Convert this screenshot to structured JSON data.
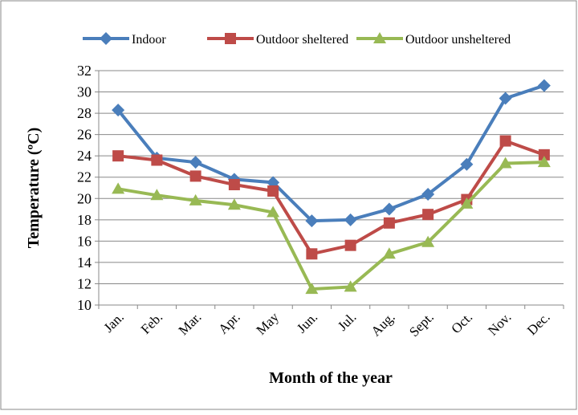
{
  "chart_data": {
    "type": "line",
    "x_label": "Month of the year",
    "y_label": "Temperature (ºC)",
    "categories": [
      "Jan.",
      "Feb.",
      "Mar.",
      "Apr.",
      "May",
      "Jun.",
      "Jul.",
      "Aug.",
      "Sept.",
      "Oct.",
      "Nov.",
      "Dec."
    ],
    "series": [
      {
        "name": "Indoor",
        "color": "#4a7ebb",
        "marker": "diamond",
        "values": [
          28.3,
          23.8,
          23.4,
          21.8,
          21.5,
          17.9,
          18.0,
          19.0,
          20.4,
          23.2,
          29.4,
          30.6
        ]
      },
      {
        "name": "Outdoor sheltered",
        "color": "#be4b48",
        "marker": "square",
        "values": [
          24.0,
          23.6,
          22.1,
          21.3,
          20.7,
          14.8,
          15.6,
          17.7,
          18.5,
          19.9,
          25.4,
          24.1
        ]
      },
      {
        "name": "Outdoor unsheltered",
        "color": "#98b954",
        "marker": "triangle",
        "values": [
          20.9,
          20.3,
          19.8,
          19.4,
          18.7,
          11.5,
          11.7,
          14.8,
          15.9,
          19.5,
          23.3,
          23.4
        ]
      }
    ],
    "ylim": [
      10,
      32
    ],
    "yticks": [
      10,
      12,
      14,
      16,
      18,
      20,
      22,
      24,
      26,
      28,
      30,
      32
    ],
    "grid": true,
    "legend": "top"
  }
}
